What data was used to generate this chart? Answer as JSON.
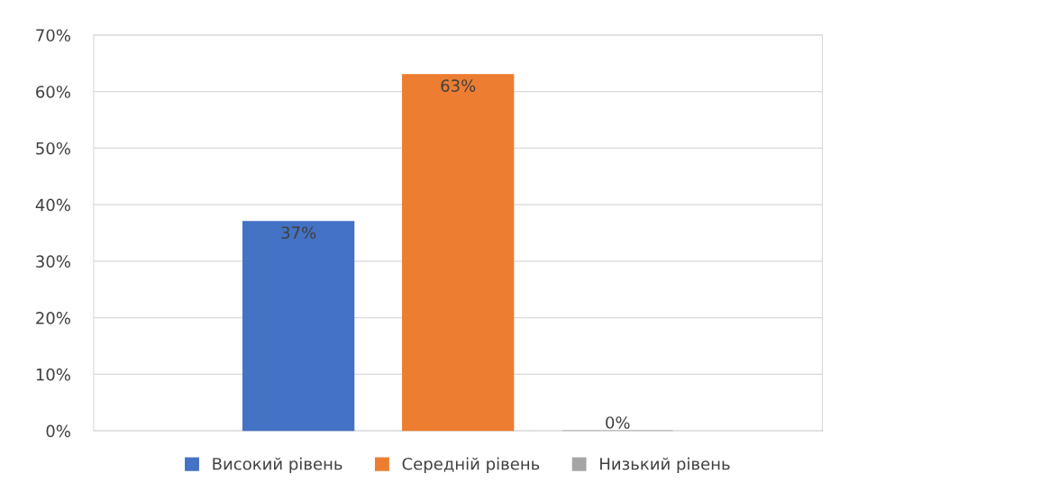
{
  "chart_data": {
    "type": "bar",
    "categories": [
      null
    ],
    "series": [
      {
        "name": "Високий рівень",
        "color": "#4472c4",
        "values": [
          37
        ],
        "value_labels": [
          "37%"
        ]
      },
      {
        "name": "Середній рівень",
        "color": "#ed7d31",
        "values": [
          63
        ],
        "value_labels": [
          "63%"
        ]
      },
      {
        "name": "Низький рівень",
        "color": "#a5a5a5",
        "values": [
          0
        ],
        "value_labels": [
          "0%"
        ]
      }
    ],
    "ylim": [
      0,
      70
    ],
    "yticks": [
      {
        "value": 0,
        "label": "0%"
      },
      {
        "value": 10,
        "label": "10%"
      },
      {
        "value": 20,
        "label": "20%"
      },
      {
        "value": 30,
        "label": "30%"
      },
      {
        "value": 40,
        "label": "40%"
      },
      {
        "value": 50,
        "label": "50%"
      },
      {
        "value": 60,
        "label": "60%"
      },
      {
        "value": 70,
        "label": "70%"
      }
    ],
    "grid": "y",
    "legend": "bottom"
  }
}
